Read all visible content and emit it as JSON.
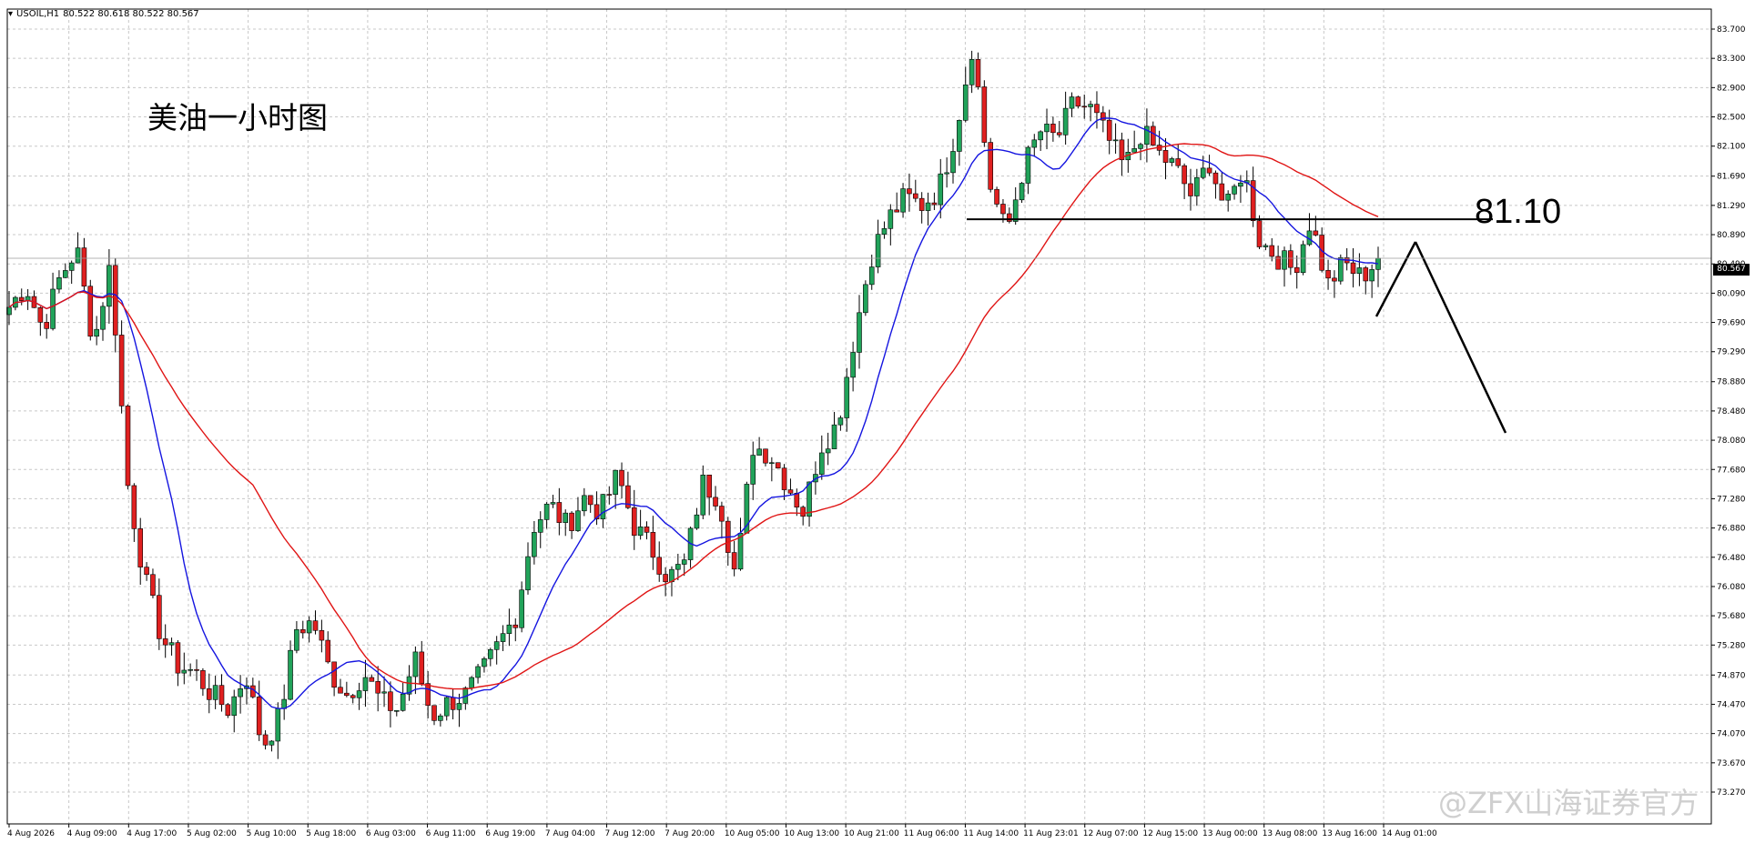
{
  "header": {
    "symbol": "USOIL,H1",
    "ohlc": "80.522 80.618 80.522 80.567",
    "menu_icon": "triangle-down-icon"
  },
  "annotations": {
    "title": "美油一小时图",
    "level_label": "81.10"
  },
  "watermark": "@ZFX山海证券官方",
  "current_price": "80.567",
  "colors": {
    "bull_body": "#21a35a",
    "bear_body": "#e02020",
    "ma_fast": "#1515e0",
    "ma_slow": "#e01515",
    "grid": "#c8c8c8",
    "frame": "#000000"
  },
  "chart_data": {
    "type": "candlestick",
    "timeframe": "H1",
    "ylim": [
      73.27,
      83.92
    ],
    "y_ticks": [
      "83.700",
      "83.300",
      "82.900",
      "82.500",
      "82.100",
      "81.690",
      "81.290",
      "80.890",
      "80.490",
      "80.090",
      "79.690",
      "79.290",
      "78.880",
      "78.480",
      "78.080",
      "77.680",
      "77.280",
      "76.880",
      "76.480",
      "76.080",
      "75.680",
      "75.280",
      "74.870",
      "74.470",
      "74.070",
      "73.670",
      "73.270"
    ],
    "x_ticks": [
      "4 Aug 2026",
      "4 Aug 09:00",
      "4 Aug 17:00",
      "5 Aug 02:00",
      "5 Aug 10:00",
      "5 Aug 18:00",
      "6 Aug 03:00",
      "6 Aug 11:00",
      "6 Aug 19:00",
      "7 Aug 04:00",
      "7 Aug 12:00",
      "7 Aug 20:00",
      "10 Aug 05:00",
      "10 Aug 13:00",
      "10 Aug 21:00",
      "11 Aug 06:00",
      "11 Aug 14:00",
      "11 Aug 23:01",
      "12 Aug 07:00",
      "12 Aug 15:00",
      "13 Aug 00:00",
      "13 Aug 08:00",
      "13 Aug 16:00",
      "14 Aug 01:00"
    ],
    "close_path": [
      79.9,
      80.2,
      79.6,
      80.3,
      80.7,
      79.4,
      80.5,
      77.5,
      76.2,
      75.4,
      75.0,
      74.9,
      74.6,
      74.4,
      74.9,
      73.9,
      74.3,
      75.5,
      75.6,
      74.9,
      74.6,
      74.9,
      74.5,
      74.4,
      75.1,
      74.3,
      74.5,
      74.6,
      74.9,
      75.3,
      75.7,
      76.9,
      77.2,
      76.9,
      77.3,
      77.1,
      77.6,
      76.9,
      76.6,
      76.2,
      76.4,
      77.5,
      77.3,
      76.2,
      78.0,
      77.9,
      77.5,
      77.1,
      78.0,
      78.3,
      79.5,
      80.6,
      81.1,
      81.4,
      81.3,
      81.5,
      82.3,
      83.5,
      81.6,
      80.9,
      81.8,
      82.3,
      82.2,
      82.7,
      82.6,
      82.2,
      81.8,
      82.3,
      82.0,
      81.8,
      81.4,
      81.9,
      81.2,
      81.8,
      80.8,
      80.6,
      80.4,
      81.1,
      80.2,
      80.5,
      80.3,
      80.567
    ],
    "ma_fast": {
      "name": "",
      "start": 78.6,
      "end": 80.6
    },
    "ma_slow": {
      "name": "",
      "start": 80.8,
      "end": 81.6
    },
    "horizontal_level": 81.1,
    "projection": "rise to the 81.10 level then drop toward 78.5"
  }
}
